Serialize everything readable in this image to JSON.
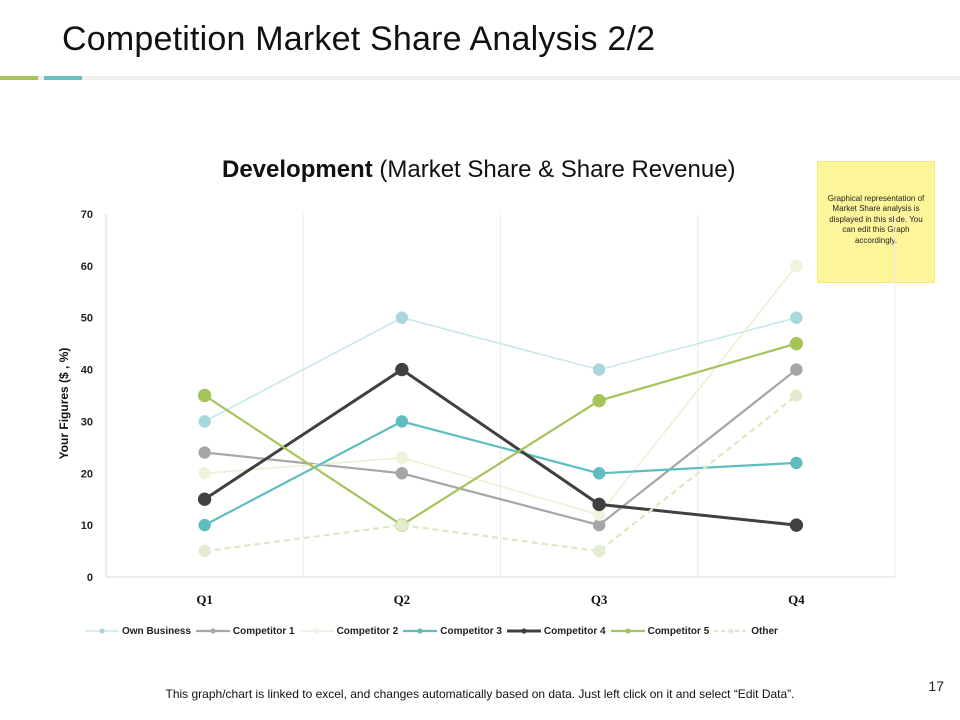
{
  "slide": {
    "title": "Competition Market Share Analysis 2/2",
    "page_number": "17",
    "footer_note": "This graph/chart is linked to excel, and changes automatically based on data. Just left click on it and select “Edit Data”.",
    "note_text": "Graphical representation of Market Share analysis is displayed in this slide. You can edit this Graph accordingly.",
    "accent_colors": [
      "#a5c45c",
      "#6bbfc1"
    ]
  },
  "chart_data": {
    "type": "line",
    "title_bold": "Development",
    "title_rest": " (Market Share & Share Revenue)",
    "xlabel": "",
    "ylabel": "Your Figures ($ , %)",
    "categories": [
      "Q1",
      "Q2",
      "Q3",
      "Q4"
    ],
    "ylim": [
      0,
      70
    ],
    "yticks": [
      0,
      10,
      20,
      30,
      40,
      50,
      60,
      70
    ],
    "grid": "vertical",
    "legend_position": "bottom",
    "series": [
      {
        "name": "Own Business",
        "values": [
          30,
          50,
          40,
          50
        ],
        "color": "#c8e8ea",
        "marker_color": "#a8d8db",
        "dashed": false,
        "line_weight": "thin"
      },
      {
        "name": "Competitor 1",
        "values": [
          24,
          20,
          10,
          40
        ],
        "color": "#a6a6a6",
        "marker_color": "#a6a6a6",
        "dashed": false,
        "line_weight": "medium"
      },
      {
        "name": "Competitor 2",
        "values": [
          20,
          23,
          12,
          60
        ],
        "color": "#eaf0d6",
        "marker_color": "#eef3dc",
        "dashed": false,
        "line_weight": "thin"
      },
      {
        "name": "Competitor 3",
        "values": [
          10,
          30,
          20,
          22
        ],
        "color": "#5fbdbf",
        "marker_color": "#5fbdbf",
        "dashed": false,
        "line_weight": "medium"
      },
      {
        "name": "Competitor 4",
        "values": [
          15,
          40,
          14,
          10
        ],
        "color": "#404040",
        "marker_color": "#404040",
        "dashed": false,
        "line_weight": "bold"
      },
      {
        "name": "Competitor 5",
        "values": [
          35,
          10,
          34,
          45
        ],
        "color": "#a5c45c",
        "marker_color": "#a5c45c",
        "dashed": false,
        "line_weight": "medium"
      },
      {
        "name": "Other",
        "values": [
          5,
          10,
          5,
          35
        ],
        "color": "#dde8c0",
        "marker_color": "#e4ecd0",
        "dashed": true,
        "line_weight": "medium"
      }
    ]
  }
}
